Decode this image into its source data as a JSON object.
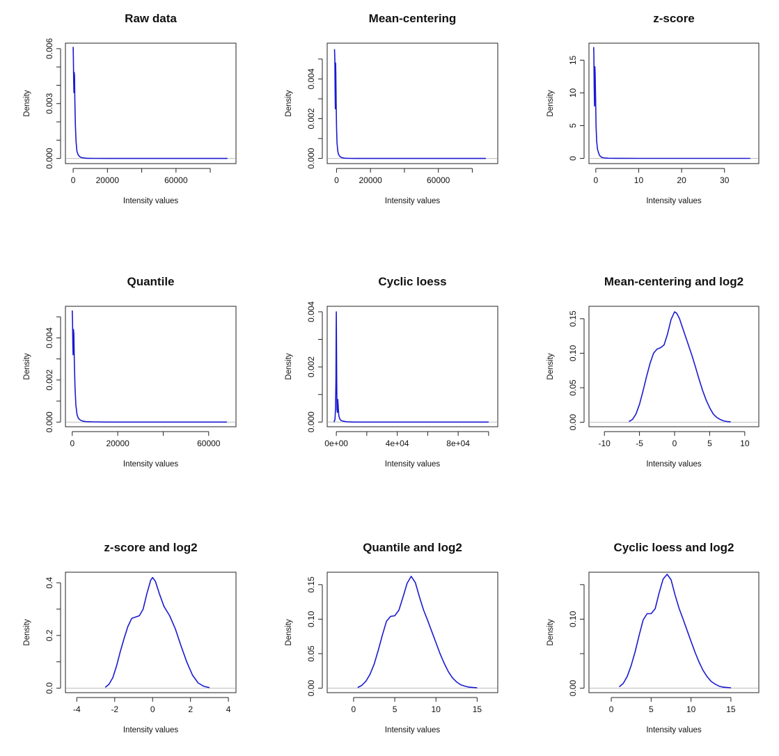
{
  "colors": {
    "curve": "#1a1ad0",
    "baseline": "#bdbdbd"
  },
  "chart_data": [
    {
      "type": "line",
      "title": "Raw data",
      "xlabel": "Intensity values",
      "ylabel": "Density",
      "xlim": [
        -4500,
        95000
      ],
      "ylim": [
        -0.00028,
        0.0063
      ],
      "xticks": [
        0,
        20000,
        40000,
        60000,
        80000
      ],
      "xtick_labels": [
        "0",
        "20000",
        "",
        "60000",
        ""
      ],
      "yticks": [
        0,
        0.001,
        0.002,
        0.003,
        0.004,
        0.005,
        0.006
      ],
      "ytick_labels": [
        "0.000",
        "",
        "",
        "0.003",
        "",
        "",
        "0.006"
      ],
      "series": [
        {
          "x": [
            0,
            150,
            300,
            450,
            600,
            800,
            1000,
            1300,
            1700,
            2200,
            2800,
            3600,
            4500,
            6000,
            8000,
            12000,
            20000,
            40000,
            60000,
            80000,
            90000
          ],
          "y": [
            0.0061,
            0.0055,
            0.0043,
            0.0036,
            0.0047,
            0.0045,
            0.0032,
            0.0018,
            0.0009,
            0.0004,
            0.00022,
            0.00012,
            6e-05,
            3e-05,
            1e-05,
            5e-06,
            2e-06,
            0,
            0,
            0,
            0
          ]
        }
      ]
    },
    {
      "type": "line",
      "title": "Mean-centering",
      "xlabel": "Intensity values",
      "ylabel": "Density",
      "xlim": [
        -5500,
        95000
      ],
      "ylim": [
        -0.00026,
        0.0058
      ],
      "xticks": [
        0,
        20000,
        40000,
        60000,
        80000
      ],
      "xtick_labels": [
        "0",
        "20000",
        "",
        "60000",
        ""
      ],
      "yticks": [
        0,
        0.001,
        0.002,
        0.003,
        0.004,
        0.005
      ],
      "ytick_labels": [
        "0.000",
        "",
        "0.002",
        "",
        "0.004",
        ""
      ],
      "series": [
        {
          "x": [
            -1200,
            -1000,
            -850,
            -700,
            -550,
            -400,
            -200,
            0,
            300,
            700,
            1200,
            1800,
            2600,
            3500,
            5000,
            8000,
            15000,
            40000,
            70000,
            88000
          ],
          "y": [
            0.0055,
            0.005,
            0.0036,
            0.0025,
            0.0048,
            0.0043,
            0.0028,
            0.0016,
            0.0008,
            0.0004,
            0.0002,
            0.00012,
            6e-05,
            3e-05,
            1e-05,
            4e-06,
            0,
            0,
            0,
            0
          ]
        }
      ]
    },
    {
      "type": "line",
      "title": "z-score",
      "xlabel": "Intensity values",
      "ylabel": "Density",
      "xlim": [
        -1.6,
        38
      ],
      "ylim": [
        -0.8,
        17.6
      ],
      "xticks": [
        0,
        10,
        20,
        30
      ],
      "xtick_labels": [
        "0",
        "10",
        "20",
        "30"
      ],
      "yticks": [
        0,
        5,
        10,
        15
      ],
      "ytick_labels": [
        "0",
        "5",
        "10",
        "15"
      ],
      "series": [
        {
          "x": [
            -0.5,
            -0.45,
            -0.38,
            -0.3,
            -0.22,
            -0.15,
            -0.05,
            0.05,
            0.2,
            0.4,
            0.7,
            1.0,
            1.4,
            2,
            3,
            5,
            10,
            20,
            30,
            36
          ],
          "y": [
            17,
            15.5,
            11,
            8,
            14,
            13,
            9,
            5,
            2.6,
            1.4,
            0.7,
            0.35,
            0.15,
            0.06,
            0.02,
            0.01,
            0,
            0,
            0,
            0
          ]
        }
      ]
    },
    {
      "type": "line",
      "title": "Quantile",
      "xlabel": "Intensity values",
      "ylabel": "Density",
      "xlim": [
        -3000,
        72000
      ],
      "ylim": [
        -0.00022,
        0.0055
      ],
      "xticks": [
        0,
        20000,
        40000,
        60000
      ],
      "xtick_labels": [
        "0",
        "20000",
        "",
        "60000"
      ],
      "yticks": [
        0,
        0.001,
        0.002,
        0.003,
        0.004,
        0.005
      ],
      "ytick_labels": [
        "0.000",
        "",
        "0.002",
        "",
        "0.004",
        ""
      ],
      "series": [
        {
          "x": [
            0,
            120,
            250,
            380,
            520,
            700,
            900,
            1200,
            1600,
            2100,
            2700,
            3500,
            4500,
            6000,
            9000,
            15000,
            30000,
            50000,
            68000
          ],
          "y": [
            0.0053,
            0.0048,
            0.0037,
            0.0032,
            0.0044,
            0.0042,
            0.003,
            0.0017,
            0.0008,
            0.00035,
            0.00018,
            0.0001,
            5e-05,
            2e-05,
            1e-05,
            0,
            0,
            0,
            0
          ]
        }
      ]
    },
    {
      "type": "line",
      "title": "Cyclic loess",
      "xlabel": "Intensity values",
      "ylabel": "Density",
      "xlim": [
        -6000,
        106000
      ],
      "ylim": [
        -0.00017,
        0.0042
      ],
      "xticks": [
        0,
        20000,
        40000,
        60000,
        80000,
        100000
      ],
      "xtick_labels": [
        "0e+00",
        "",
        "4e+04",
        "",
        "8e+04",
        ""
      ],
      "yticks": [
        0,
        0.001,
        0.002,
        0.003,
        0.004
      ],
      "ytick_labels": [
        "0.000",
        "",
        "0.002",
        "",
        "0.004"
      ],
      "series": [
        {
          "x": [
            -1500,
            -900,
            -500,
            -250,
            -100,
            0,
            100,
            250,
            450,
            700,
            950,
            1200,
            1600,
            2200,
            3000,
            4500,
            7000,
            12000,
            30000,
            60000,
            100000
          ],
          "y": [
            0,
            0.0001,
            0.0005,
            0.0016,
            0.0033,
            0.004,
            0.0032,
            0.0015,
            0.00045,
            0.00035,
            0.00082,
            0.0006,
            0.00025,
            0.00012,
            6e-05,
            3e-05,
            1e-05,
            0,
            0,
            0,
            0
          ]
        }
      ]
    },
    {
      "type": "line",
      "title": "Mean-centering and log2",
      "xlabel": "Intensity values",
      "ylabel": "Density",
      "xlim": [
        -12.2,
        12
      ],
      "ylim": [
        -0.0065,
        0.168
      ],
      "xticks": [
        -10,
        -5,
        0,
        5,
        10
      ],
      "xtick_labels": [
        "-10",
        "-5",
        "0",
        "5",
        "10"
      ],
      "yticks": [
        0,
        0.05,
        0.1,
        0.15
      ],
      "ytick_labels": [
        "0.00",
        "0.05",
        "0.10",
        "0.15"
      ],
      "series": [
        {
          "x": [
            -6.5,
            -6,
            -5.5,
            -5,
            -4.5,
            -4,
            -3.5,
            -3,
            -2.5,
            -2,
            -1.5,
            -1,
            -0.5,
            0,
            0.3,
            0.7,
            1.2,
            1.8,
            2.5,
            3,
            3.5,
            4,
            4.5,
            5,
            5.5,
            6,
            6.5,
            7,
            7.5,
            8
          ],
          "y": [
            0.001,
            0.004,
            0.012,
            0.026,
            0.045,
            0.066,
            0.085,
            0.1,
            0.106,
            0.108,
            0.112,
            0.128,
            0.149,
            0.16,
            0.158,
            0.15,
            0.135,
            0.117,
            0.096,
            0.079,
            0.062,
            0.046,
            0.032,
            0.021,
            0.012,
            0.007,
            0.004,
            0.002,
            0.001,
            0.0005
          ]
        }
      ]
    },
    {
      "type": "line",
      "title": "z-score and log2",
      "xlabel": "Intensity values",
      "ylabel": "Density",
      "xlim": [
        -4.6,
        4.4
      ],
      "ylim": [
        -0.017,
        0.44
      ],
      "xticks": [
        -4,
        -2,
        0,
        2,
        4
      ],
      "xtick_labels": [
        "-4",
        "-2",
        "0",
        "2",
        "4"
      ],
      "yticks": [
        0,
        0.1,
        0.2,
        0.3,
        0.4
      ],
      "ytick_labels": [
        "0.0",
        "",
        "0.2",
        "",
        "0.4"
      ],
      "series": [
        {
          "x": [
            -2.5,
            -2.3,
            -2.1,
            -1.9,
            -1.7,
            -1.5,
            -1.3,
            -1.1,
            -0.9,
            -0.7,
            -0.5,
            -0.3,
            -0.1,
            0,
            0.15,
            0.35,
            0.6,
            0.9,
            1.2,
            1.5,
            1.8,
            2.1,
            2.4,
            2.7,
            3.0
          ],
          "y": [
            0.003,
            0.015,
            0.04,
            0.085,
            0.14,
            0.19,
            0.235,
            0.265,
            0.27,
            0.275,
            0.3,
            0.36,
            0.41,
            0.42,
            0.405,
            0.36,
            0.31,
            0.275,
            0.225,
            0.16,
            0.1,
            0.05,
            0.02,
            0.007,
            0.002
          ]
        }
      ]
    },
    {
      "type": "line",
      "title": "Quantile and log2",
      "xlabel": "Intensity values",
      "ylabel": "Density",
      "xlim": [
        -3.2,
        17.5
      ],
      "ylim": [
        -0.0065,
        0.168
      ],
      "xticks": [
        0,
        5,
        10,
        15
      ],
      "xtick_labels": [
        "0",
        "5",
        "10",
        "15"
      ],
      "yticks": [
        0,
        0.05,
        0.1,
        0.15
      ],
      "ytick_labels": [
        "0.00",
        "0.05",
        "0.10",
        "0.15"
      ],
      "series": [
        {
          "x": [
            0.5,
            1,
            1.5,
            2,
            2.5,
            3,
            3.5,
            4,
            4.5,
            5,
            5.5,
            6,
            6.5,
            7,
            7.5,
            8,
            8.5,
            9,
            9.5,
            10,
            10.5,
            11,
            11.5,
            12,
            12.5,
            13,
            13.5,
            14,
            15
          ],
          "y": [
            0.001,
            0.004,
            0.01,
            0.02,
            0.035,
            0.055,
            0.077,
            0.097,
            0.104,
            0.105,
            0.113,
            0.132,
            0.152,
            0.162,
            0.153,
            0.132,
            0.113,
            0.098,
            0.082,
            0.066,
            0.05,
            0.036,
            0.024,
            0.015,
            0.009,
            0.005,
            0.003,
            0.0015,
            0.0005
          ]
        }
      ]
    },
    {
      "type": "line",
      "title": "Cyclic loess and log2",
      "xlabel": "Intensity values",
      "ylabel": "Density",
      "xlim": [
        -2.8,
        18.5
      ],
      "ylim": [
        -0.0065,
        0.168
      ],
      "xticks": [
        0,
        5,
        10,
        15
      ],
      "xtick_labels": [
        "0",
        "5",
        "10",
        "15"
      ],
      "yticks": [
        0,
        0.05,
        0.1,
        0.15
      ],
      "ytick_labels": [
        "0.00",
        "",
        "0.10",
        ""
      ],
      "series": [
        {
          "x": [
            1,
            1.5,
            2,
            2.5,
            3,
            3.5,
            4,
            4.5,
            5,
            5.5,
            6,
            6.5,
            7,
            7.5,
            8,
            8.5,
            9,
            9.5,
            10,
            10.5,
            11,
            11.5,
            12,
            12.5,
            13,
            13.5,
            14,
            15
          ],
          "y": [
            0.002,
            0.007,
            0.017,
            0.033,
            0.053,
            0.077,
            0.099,
            0.108,
            0.108,
            0.115,
            0.138,
            0.158,
            0.165,
            0.157,
            0.135,
            0.116,
            0.1,
            0.084,
            0.068,
            0.052,
            0.038,
            0.026,
            0.017,
            0.01,
            0.006,
            0.003,
            0.0015,
            0.0005
          ]
        }
      ]
    }
  ]
}
